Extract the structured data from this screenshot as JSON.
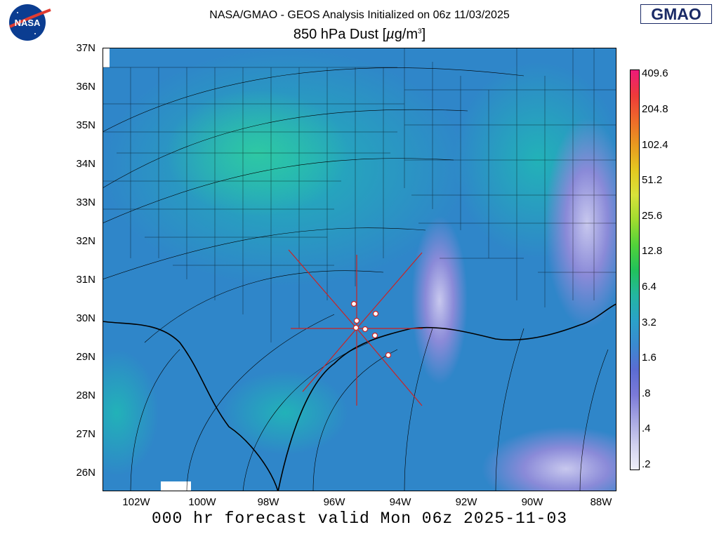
{
  "header": {
    "title": "NASA/GMAO - GEOS Analysis Initialized on 06z 11/03/2025",
    "subtitle_prefix": "850 hPa Dust [",
    "subtitle_mu": "µ",
    "subtitle_unit": "g/m",
    "subtitle_exp": "3",
    "subtitle_suffix": "]",
    "logo_left": "NASA",
    "logo_right": "GMAO"
  },
  "footer": {
    "text": "000 hr forecast valid Mon 06z 2025-11-03"
  },
  "map": {
    "lat_labels": [
      "37N",
      "36N",
      "35N",
      "34N",
      "33N",
      "32N",
      "31N",
      "30N",
      "29N",
      "28N",
      "27N",
      "26N"
    ],
    "lon_labels": [
      "102W",
      "100W",
      "98W",
      "96W",
      "94W",
      "92W",
      "90W",
      "88W"
    ],
    "colors": {
      "gulf": "#2f7fc9",
      "land": "#2f8fcb",
      "high_dust": "#2bc3a8",
      "low_dust": "#8a8ad8",
      "marker": "#ffffff",
      "ray": "#cc2222"
    }
  },
  "colorbar": {
    "labels": [
      "409.6",
      "204.8",
      "102.4",
      "51.2",
      "25.6",
      "12.8",
      "6.4",
      "3.2",
      "1.6",
      ".8",
      ".4",
      ".2"
    ],
    "colors": [
      "#ee1a7a",
      "#ee3a3a",
      "#ee6a2a",
      "#e89a20",
      "#e4c820",
      "#d8e23a",
      "#a0dc30",
      "#52d23a",
      "#22c25a",
      "#24b6a0",
      "#2aa2c8",
      "#3a8ad0",
      "#5b6cd2",
      "#7b7ad8",
      "#a6a6e2",
      "#d0d0ee",
      "#f0f0fa"
    ]
  }
}
